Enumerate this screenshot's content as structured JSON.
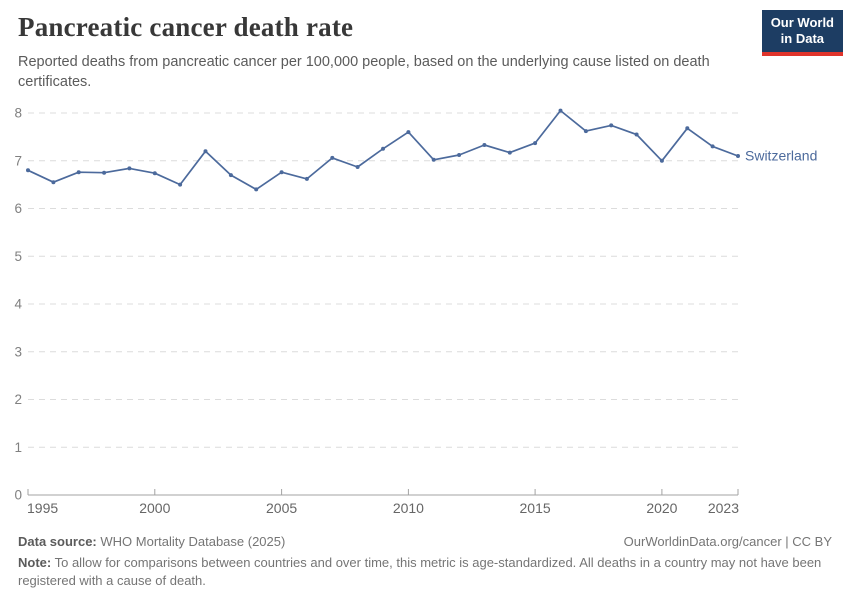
{
  "header": {
    "title": "Pancreatic cancer death rate",
    "subtitle": "Reported deaths from pancreatic cancer per 100,000 people, based on the underlying cause listed on death certificates."
  },
  "logo": {
    "line1": "Our World",
    "line2": "in Data",
    "bg": "#1d3d63",
    "accent": "#e0342b"
  },
  "chart_data": {
    "type": "line",
    "title": "Pancreatic cancer death rate",
    "xlabel": "",
    "ylabel": "",
    "x": [
      1995,
      1996,
      1997,
      1998,
      1999,
      2000,
      2001,
      2002,
      2003,
      2004,
      2005,
      2006,
      2007,
      2008,
      2009,
      2010,
      2011,
      2012,
      2013,
      2014,
      2015,
      2016,
      2017,
      2018,
      2019,
      2020,
      2021,
      2022,
      2023
    ],
    "series": [
      {
        "name": "Switzerland",
        "color": "#4C6A9C",
        "values": [
          6.8,
          6.55,
          6.76,
          6.75,
          6.84,
          6.74,
          6.5,
          7.2,
          6.7,
          6.4,
          6.76,
          6.62,
          7.06,
          6.87,
          7.25,
          7.6,
          7.02,
          7.12,
          7.33,
          7.17,
          7.37,
          8.05,
          7.62,
          7.74,
          7.55,
          7.0,
          7.68,
          7.3,
          7.1
        ]
      }
    ],
    "xlim": [
      1995,
      2023
    ],
    "ylim": [
      0,
      8
    ],
    "xticks": [
      1995,
      2000,
      2005,
      2010,
      2015,
      2020,
      2023
    ],
    "yticks": [
      0,
      1,
      2,
      3,
      4,
      5,
      6,
      7,
      8
    ],
    "grid": "horizontal-dashed",
    "legend": "end-of-line-label",
    "colors": {
      "grid": "#dcdcdc",
      "axis": "#a3a3a3",
      "xtick_label": "#666666",
      "ytick_label": "#808080"
    }
  },
  "footer": {
    "datasource_label": "Data source:",
    "datasource_value": "WHO Mortality Database (2025)",
    "license": "OurWorldinData.org/cancer | CC BY",
    "note_label": "Note:",
    "note_text": "To allow for comparisons between countries and over time, this metric is age-standardized. All deaths in a country may not have been registered with a cause of death."
  }
}
